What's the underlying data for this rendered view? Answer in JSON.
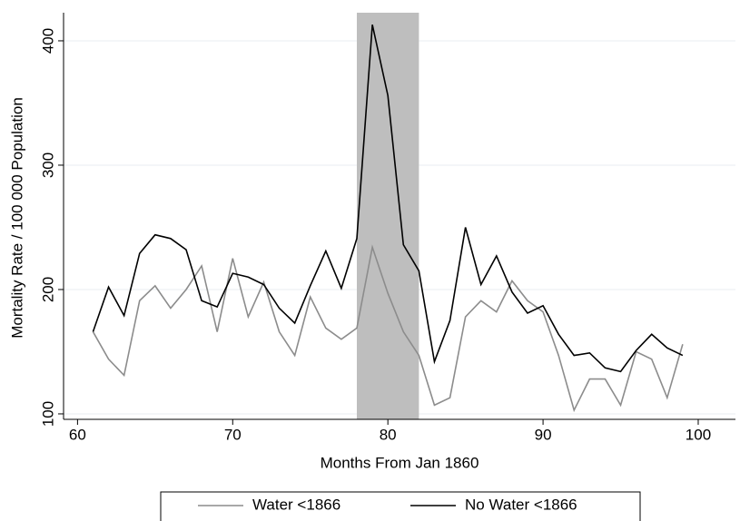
{
  "chart_data": {
    "type": "line",
    "x_label": "Months From Jan 1860",
    "y_label": "Mortality Rate / 100 000 Population",
    "x": [
      61,
      62,
      63,
      64,
      65,
      66,
      67,
      68,
      69,
      70,
      71,
      72,
      73,
      74,
      75,
      76,
      77,
      78,
      79,
      80,
      81,
      82,
      83,
      84,
      85,
      86,
      87,
      88,
      89,
      90,
      91,
      92,
      93,
      94,
      95,
      96,
      97,
      98,
      99
    ],
    "series": [
      {
        "name": "Water <1866",
        "color": "#8c8c8c",
        "values": [
          166,
          144,
          131,
          191,
          203,
          185,
          200,
          219,
          166,
          225,
          178,
          206,
          166,
          147,
          194,
          169,
          160,
          169,
          234,
          197,
          166,
          147,
          107,
          113,
          178,
          191,
          182,
          207,
          191,
          182,
          147,
          103,
          128,
          128,
          107,
          150,
          144,
          113,
          156
        ]
      },
      {
        "name": "No Water <1866",
        "color": "#000000",
        "values": [
          166,
          202,
          179,
          229,
          244,
          241,
          232,
          191,
          186,
          213,
          210,
          204,
          185,
          173,
          203,
          231,
          201,
          241,
          413,
          356,
          236,
          215,
          142,
          175,
          250,
          204,
          227,
          198,
          181,
          187,
          164,
          147,
          149,
          137,
          134,
          151,
          164,
          153,
          147
        ]
      }
    ],
    "shaded_region": [
      78,
      82
    ],
    "shaded_color": "#bebebe",
    "xlim": [
      59.1,
      102.4
    ],
    "xticks": [
      60,
      70,
      80,
      90,
      100
    ],
    "ylim": [
      95.6,
      422.6
    ],
    "yticks": [
      100,
      200,
      300,
      400
    ],
    "grid": true,
    "legend": "bottom"
  }
}
